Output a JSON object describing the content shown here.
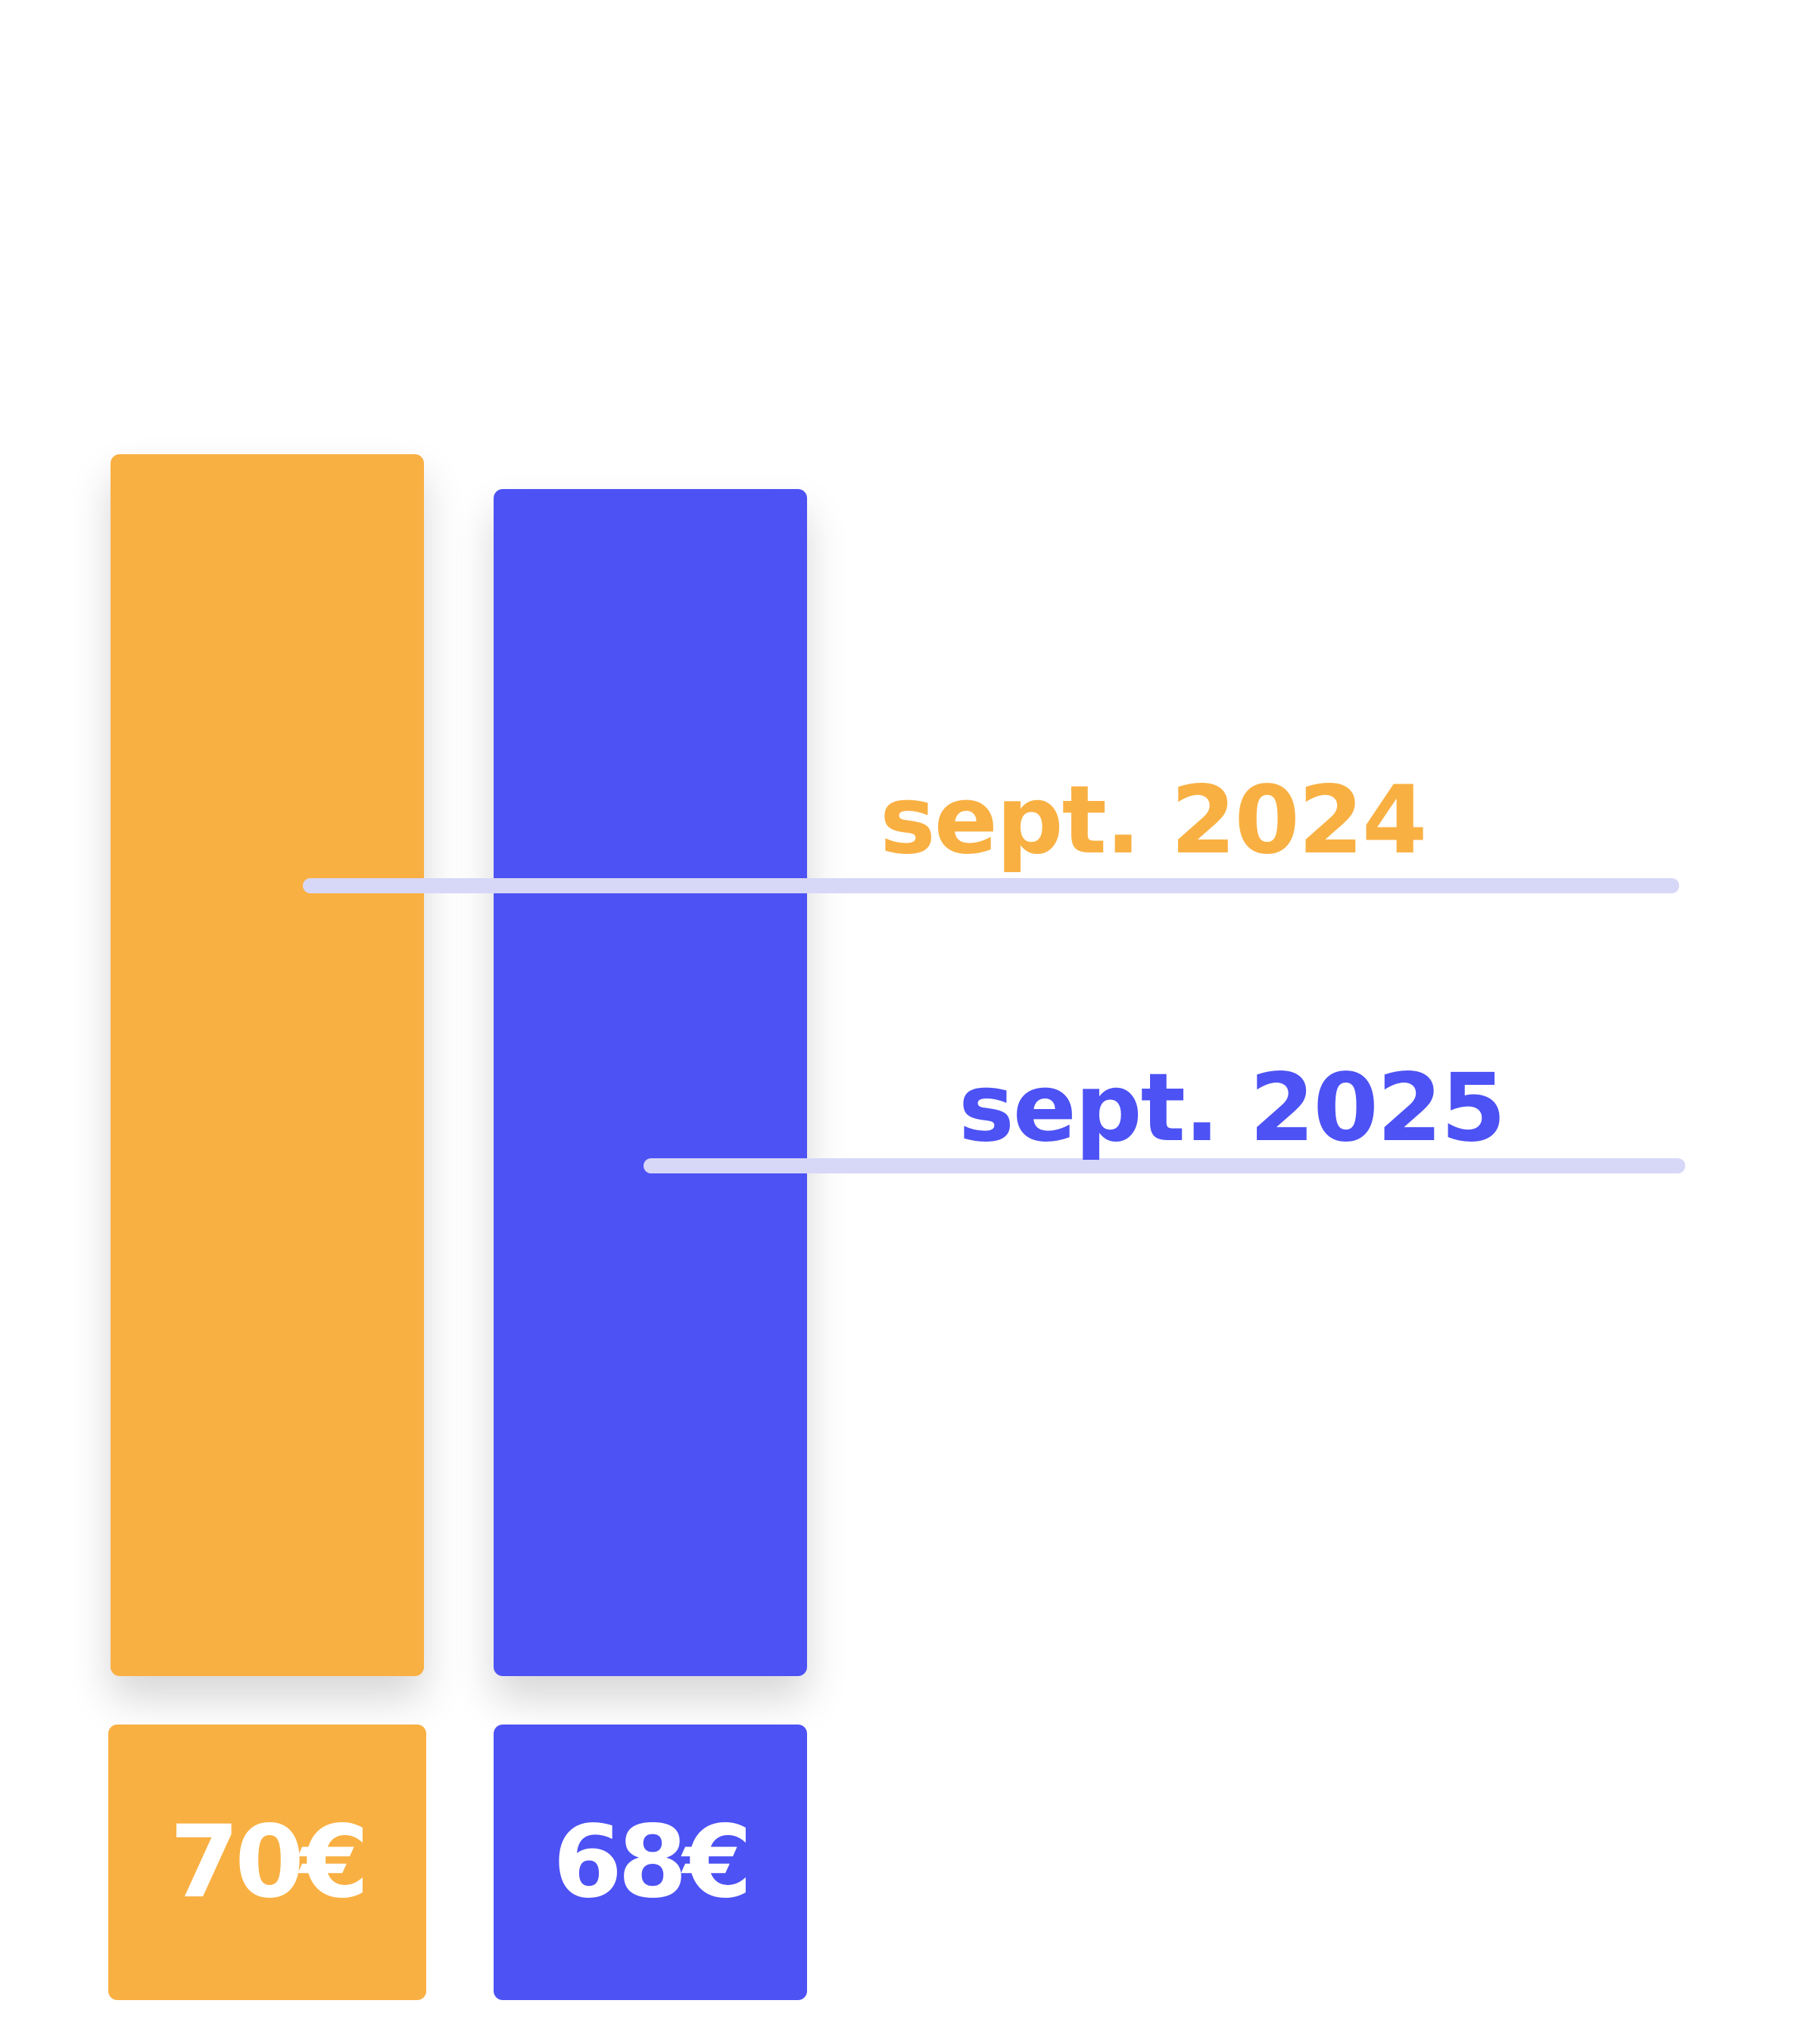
{
  "chart_data": {
    "type": "bar",
    "categories": [
      "sept. 2024",
      "sept. 2025"
    ],
    "values": [
      70,
      68
    ],
    "value_labels": [
      "70€",
      "68€"
    ],
    "colors": [
      "#f9b042",
      "#4d52f4"
    ],
    "leader_color": "#d7d7f8",
    "unit": "€",
    "title": "",
    "xlabel": "",
    "ylabel": "",
    "grid": false
  }
}
